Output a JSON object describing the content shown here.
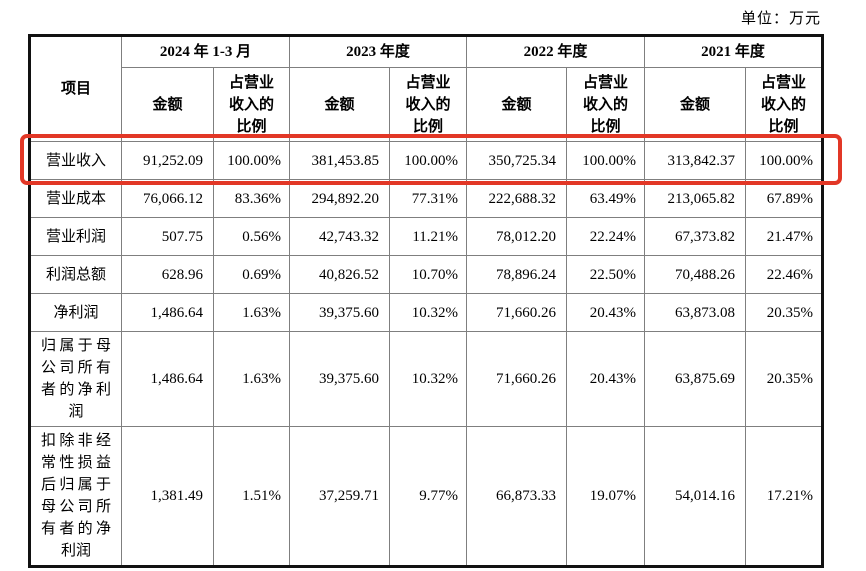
{
  "unit_label": "单位：万元",
  "highlight_color": "#e23726",
  "table": {
    "corner_header": "项目",
    "period_headers": [
      "2024 年 1-3 月",
      "2023 年度",
      "2022 年度",
      "2021 年度"
    ],
    "amount_header": "金额",
    "ratio_header": "占营业收入的比例",
    "rows": [
      {
        "label": "营业收入",
        "highlighted": true,
        "values": [
          "91,252.09",
          "100.00%",
          "381,453.85",
          "100.00%",
          "350,725.34",
          "100.00%",
          "313,842.37",
          "100.00%"
        ]
      },
      {
        "label": "营业成本",
        "highlighted": false,
        "values": [
          "76,066.12",
          "83.36%",
          "294,892.20",
          "77.31%",
          "222,688.32",
          "63.49%",
          "213,065.82",
          "67.89%"
        ]
      },
      {
        "label": "营业利润",
        "highlighted": false,
        "values": [
          "507.75",
          "0.56%",
          "42,743.32",
          "11.21%",
          "78,012.20",
          "22.24%",
          "67,373.82",
          "21.47%"
        ]
      },
      {
        "label": "利润总额",
        "highlighted": false,
        "values": [
          "628.96",
          "0.69%",
          "40,826.52",
          "10.70%",
          "78,896.24",
          "22.50%",
          "70,488.26",
          "22.46%"
        ]
      },
      {
        "label": "净利润",
        "highlighted": false,
        "values": [
          "1,486.64",
          "1.63%",
          "39,375.60",
          "10.32%",
          "71,660.26",
          "20.43%",
          "63,873.08",
          "20.35%"
        ]
      },
      {
        "label": "归属于母公司所有者的净利润",
        "highlighted": false,
        "values": [
          "1,486.64",
          "1.63%",
          "39,375.60",
          "10.32%",
          "71,660.26",
          "20.43%",
          "63,875.69",
          "20.35%"
        ]
      },
      {
        "label": "扣除非经常性损益后归属于母公司所有者的净利润",
        "highlighted": false,
        "values": [
          "1,381.49",
          "1.51%",
          "37,259.71",
          "9.77%",
          "66,873.33",
          "19.07%",
          "54,014.16",
          "17.21%"
        ]
      }
    ]
  }
}
